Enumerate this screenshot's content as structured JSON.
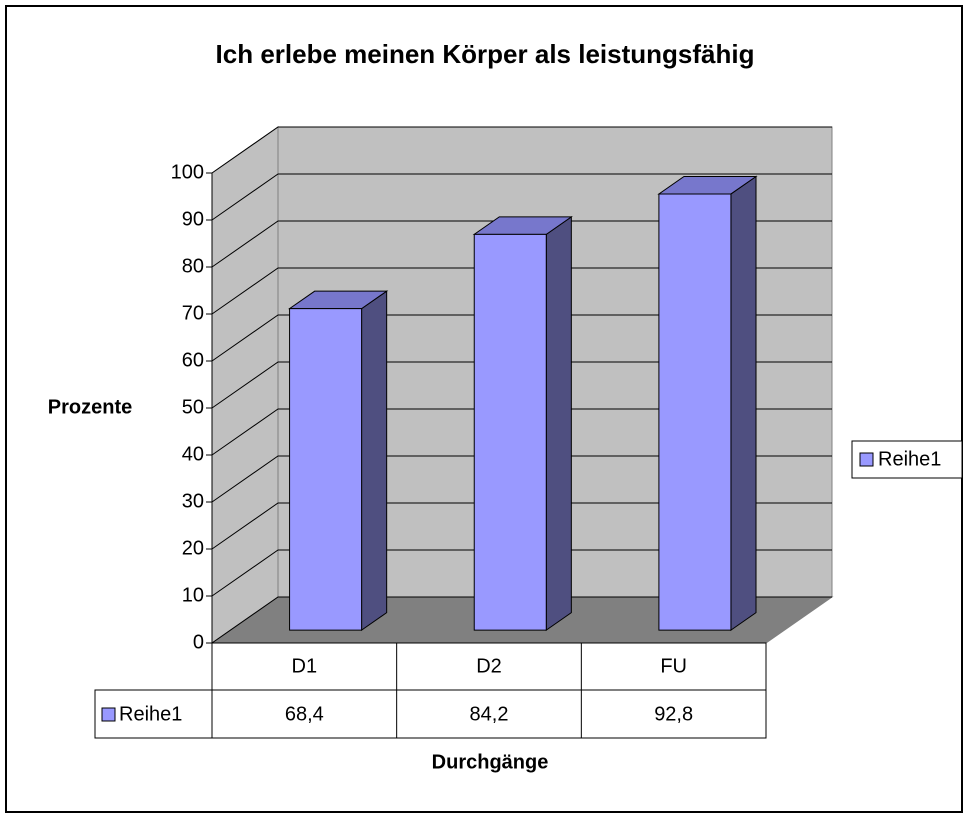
{
  "chart_data": {
    "type": "bar",
    "title": "Ich erlebe meinen Körper als leistungsfähig",
    "y_label": "Prozente",
    "x_label": "Durchgänge",
    "categories": [
      "D1",
      "D2",
      "FU"
    ],
    "series": [
      {
        "name": "Reihe1",
        "color": "#9999ff",
        "values": [
          68.4,
          84.2,
          92.8
        ],
        "value_labels": [
          "68,4",
          "84,2",
          "92,8"
        ]
      }
    ],
    "ylim": [
      0,
      100
    ],
    "yticks": [
      0,
      10,
      20,
      30,
      40,
      50,
      60,
      70,
      80,
      90,
      100
    ],
    "grid": true,
    "legend": "right",
    "data_table": true
  }
}
